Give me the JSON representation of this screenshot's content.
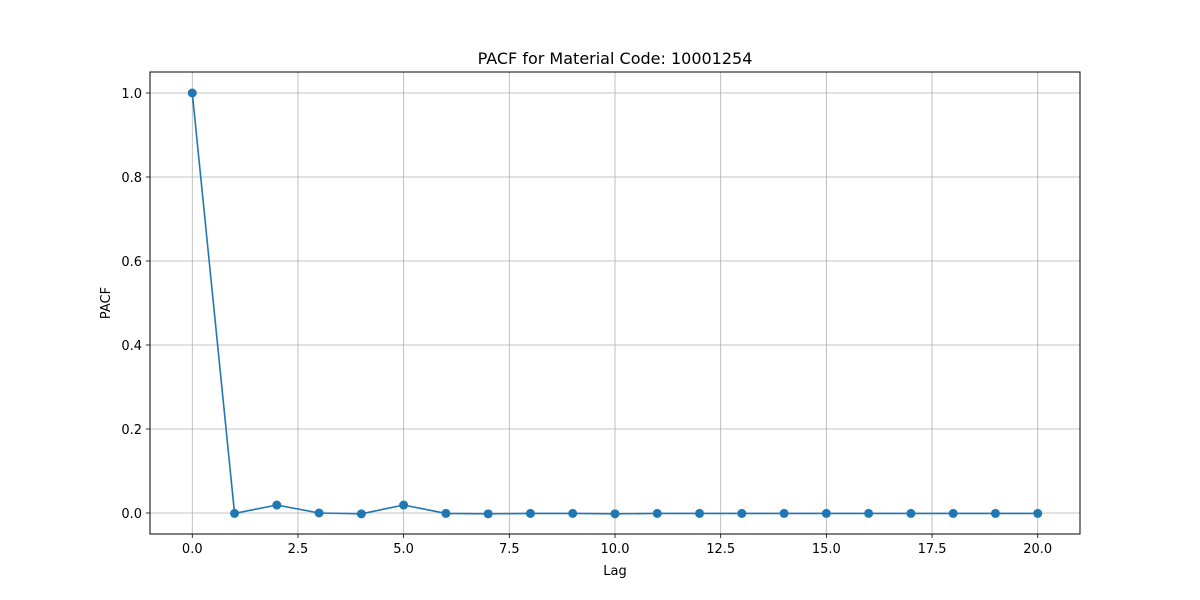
{
  "chart_data": {
    "type": "line",
    "title": "PACF for Material Code: 10001254",
    "xlabel": "Lag",
    "ylabel": "PACF",
    "xlim": [
      -1.0,
      21.0
    ],
    "ylim": [
      -0.05,
      1.05
    ],
    "xticks": [
      0.0,
      2.5,
      5.0,
      7.5,
      10.0,
      12.5,
      15.0,
      17.5,
      20.0
    ],
    "xtick_labels": [
      "0.0",
      "2.5",
      "5.0",
      "7.5",
      "10.0",
      "12.5",
      "15.0",
      "17.5",
      "20.0"
    ],
    "yticks": [
      0.0,
      0.2,
      0.4,
      0.6,
      0.8,
      1.0
    ],
    "ytick_labels": [
      "0.0",
      "0.2",
      "0.4",
      "0.6",
      "0.8",
      "1.0"
    ],
    "grid": true,
    "markers": true,
    "series": [
      {
        "color": "#1f77b4",
        "x": [
          0,
          1,
          2,
          3,
          4,
          5,
          6,
          7,
          8,
          9,
          10,
          11,
          12,
          13,
          14,
          15,
          16,
          17,
          18,
          19,
          20
        ],
        "values": [
          1.0,
          -0.001,
          0.019,
          0.0,
          -0.002,
          0.019,
          -0.001,
          -0.002,
          -0.001,
          -0.001,
          -0.002,
          -0.001,
          -0.001,
          -0.001,
          -0.001,
          -0.001,
          -0.001,
          -0.001,
          -0.001,
          -0.001,
          -0.001
        ]
      }
    ]
  }
}
